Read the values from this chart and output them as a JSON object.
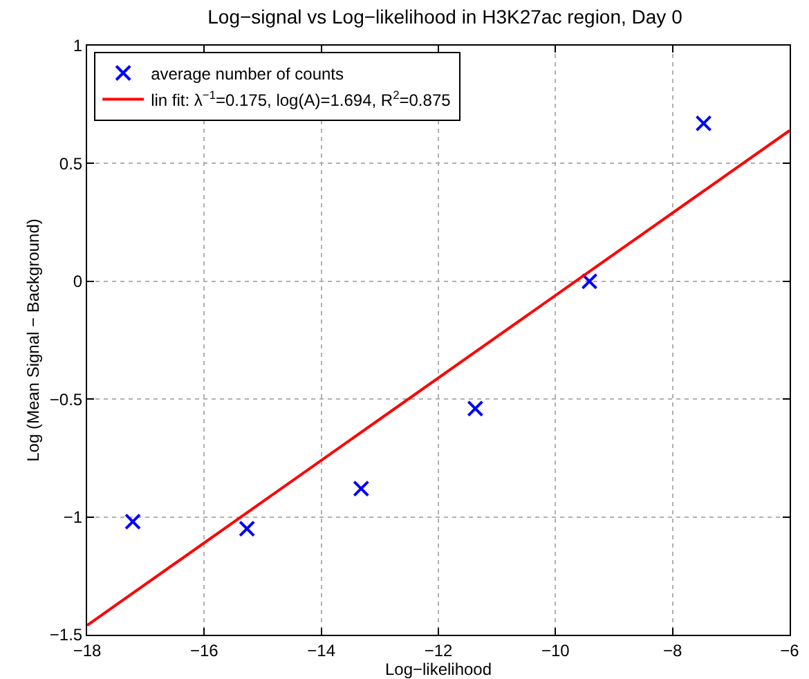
{
  "chart_data": {
    "type": "scatter",
    "title": "Log−signal vs Log−likelihood in H3K27ac region, Day 0",
    "xlabel": "Log−likelihood",
    "ylabel": "Log (Mean Signal − Background)",
    "xlim": [
      -18,
      -6
    ],
    "xticks": [
      -18,
      -16,
      -14,
      -12,
      -10,
      -8,
      -6
    ],
    "ylim": [
      -1.5,
      1
    ],
    "yticks": [
      -1.5,
      -1,
      -0.5,
      0,
      0.5,
      1
    ],
    "grid": true,
    "legend": "top left",
    "series": [
      {
        "name": "average number of counts",
        "marker": "cross",
        "color": "#0000ff",
        "x": [
          -17.22,
          -15.27,
          -13.32,
          -11.37,
          -9.42,
          -7.47
        ],
        "values": [
          -1.02,
          -1.05,
          -0.88,
          -0.54,
          0.0,
          0.67
        ]
      },
      {
        "name": "lin fit: λ$^{−1}$=0.175, log(A)=1.694, R$^{2}$=0.875",
        "type": "line",
        "color": "#ff0000",
        "line_style": "solid",
        "x": [
          -18,
          -6
        ],
        "values": [
          -1.46,
          0.64
        ]
      }
    ]
  }
}
